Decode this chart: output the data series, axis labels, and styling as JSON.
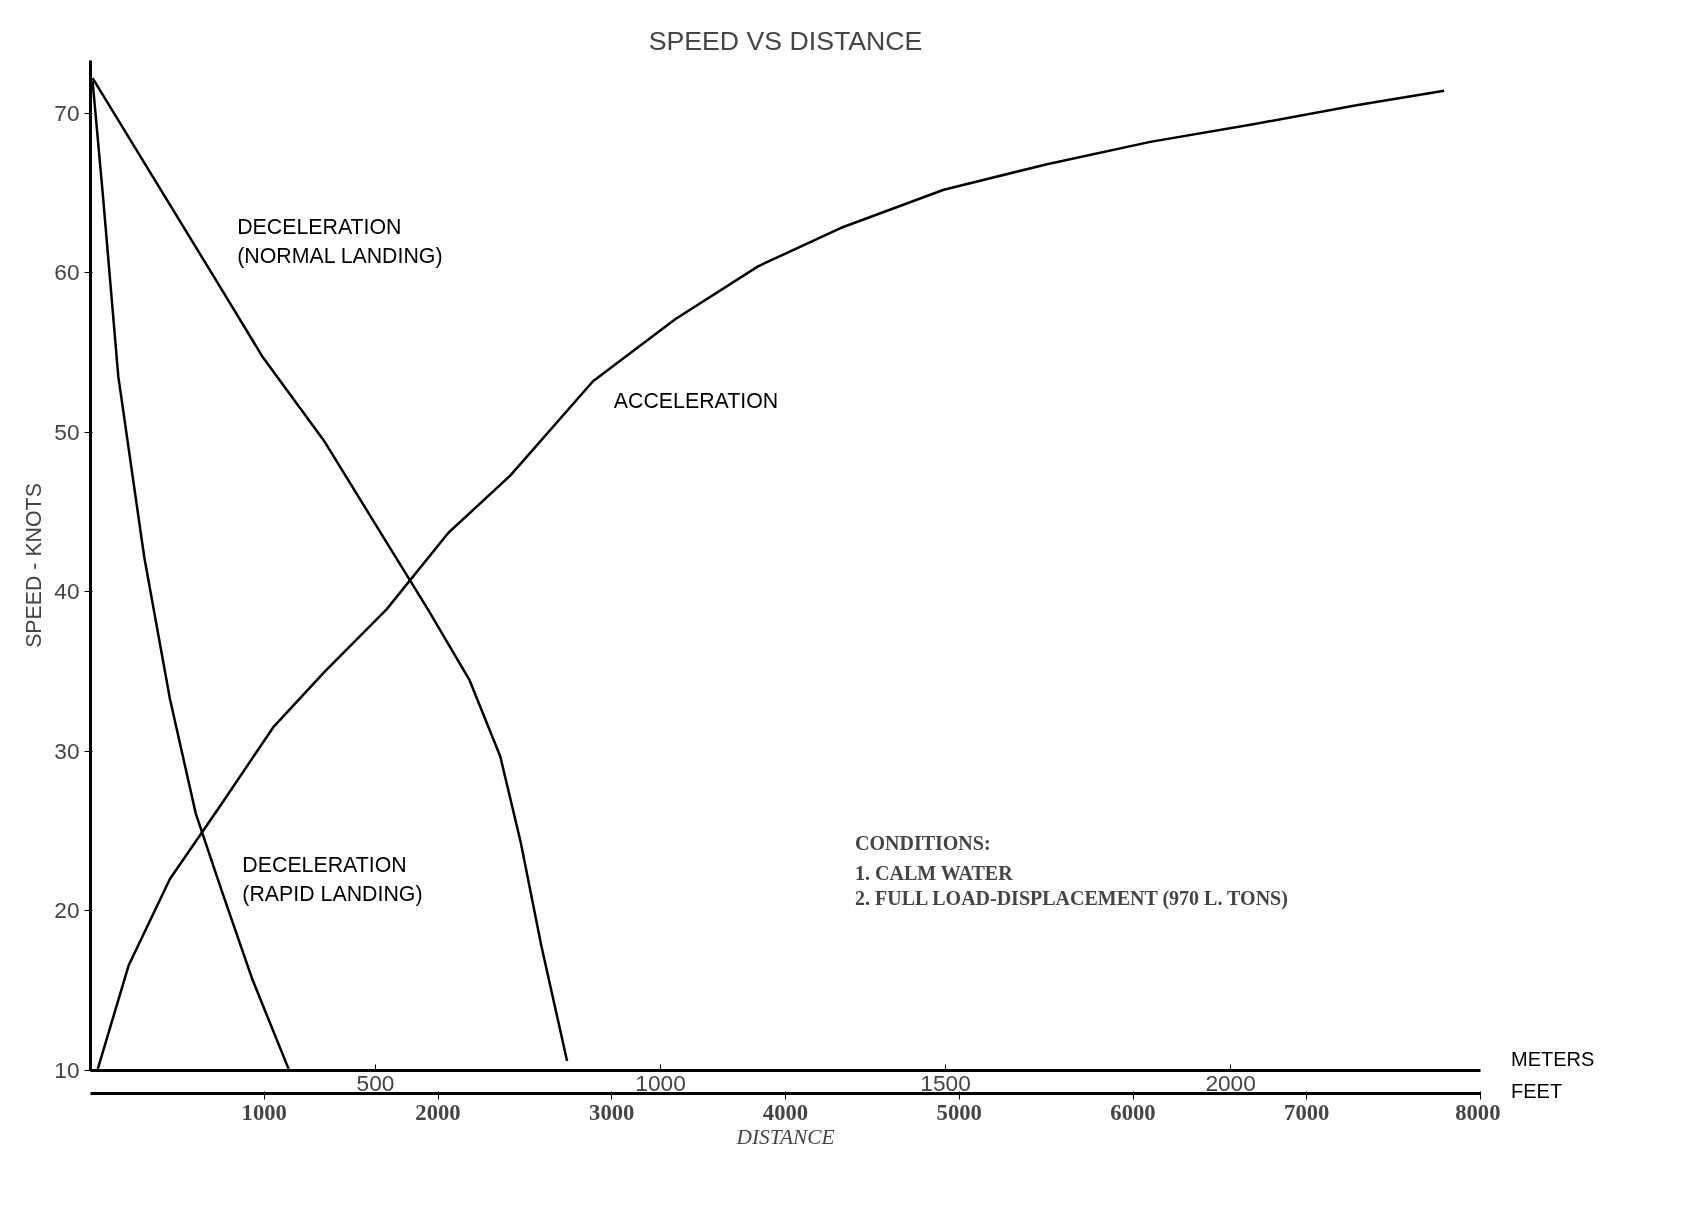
{
  "chart_data": {
    "type": "line",
    "title": "SPEED VS DISTANCE",
    "xlabel": "DISTANCE",
    "ylabel": "SPEED - KNOTS",
    "xlim": [
      0,
      8000
    ],
    "xticks": [
      1000,
      2000,
      3000,
      4000,
      5000,
      6000,
      7000,
      8000
    ],
    "x2lim": [
      0,
      2438.4
    ],
    "x2ticks": [
      500,
      1000,
      1500,
      2000
    ],
    "ylim": [
      10,
      73.3
    ],
    "yticks": [
      10,
      20,
      30,
      40,
      50,
      60,
      70
    ],
    "grid": false,
    "marker": "none",
    "line_style": "solid",
    "series": [
      {
        "name": "DECELERATION (NORMAL LANDING)",
        "color": "#000000",
        "x": [
          12,
          724,
          992,
          1348,
          1704,
          1942,
          2180,
          2358,
          2476,
          2595,
          2743
        ],
        "values": [
          72.2,
          59.5,
          54.7,
          49.4,
          43.1,
          38.9,
          34.5,
          29.7,
          24.3,
          17.8,
          10.6
        ]
      },
      {
        "name": "DECELERATION (RAPID LANDING)",
        "color": "#000000",
        "x": [
          12,
          71,
          160,
          309,
          457,
          606,
          754,
          932,
          1140
        ],
        "values": [
          72,
          64.9,
          53.5,
          42.2,
          33.3,
          26.1,
          21.3,
          15.7,
          10.1
        ]
      },
      {
        "name": "ACCELERATION",
        "color": "#000000",
        "x": [
          42,
          220,
          457,
          754,
          1051,
          1348,
          1704,
          2060,
          2417,
          2892,
          3367,
          3842,
          4317,
          4911,
          5505,
          6099,
          6692,
          7286,
          7791
        ],
        "values": [
          10.1,
          16.6,
          22,
          26.7,
          31.5,
          35,
          38.9,
          43.7,
          47.3,
          53.2,
          57.1,
          60.4,
          62.8,
          65.2,
          66.8,
          68.2,
          69.3,
          70.5,
          71.4
        ]
      }
    ],
    "annotations": [
      "METERS",
      "FEET",
      "CONDITIONS:",
      "1.    CALM WATER",
      "2.    FULL LOAD-DISPLACEMENT (970 L. TONS)"
    ]
  }
}
